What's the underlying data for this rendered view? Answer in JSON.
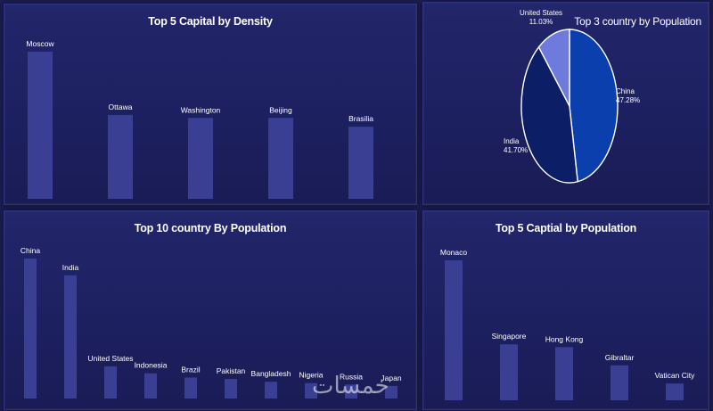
{
  "colors": {
    "bar": "#3a3f93",
    "pie_china": "#0c3fae",
    "pie_india": "#0b1e66",
    "pie_us": "#6f7bdc",
    "background": "#1b1d52"
  },
  "watermark": "خمسات",
  "chart_data": [
    {
      "id": "density",
      "type": "bar",
      "title": "Top 5 Capital by Density",
      "categories": [
        "Moscow",
        "Ottawa",
        "Washington",
        "Beijing",
        "Brasilia"
      ],
      "values": [
        100,
        57,
        55,
        55,
        49
      ],
      "ylim": [
        0,
        100
      ],
      "grid": false,
      "legend": "none"
    },
    {
      "id": "pie",
      "type": "pie",
      "title": "Top 3 country by Population",
      "categories": [
        "China",
        "India",
        "United States"
      ],
      "values": [
        47.28,
        41.7,
        11.03
      ],
      "value_labels": [
        "47.28%",
        "41.70%",
        "11.03%"
      ],
      "legend": "none"
    },
    {
      "id": "country",
      "type": "bar",
      "title": "Top 10 country By Population",
      "categories": [
        "China",
        "India",
        "United States",
        "Indonesia",
        "Brazil",
        "Pakistan",
        "Bangladesh",
        "Nigeria",
        "Russia",
        "Japan"
      ],
      "values": [
        100,
        88,
        23,
        18,
        15,
        14,
        12,
        11,
        10,
        9
      ],
      "ylim": [
        0,
        100
      ],
      "grid": false,
      "legend": "none"
    },
    {
      "id": "capital",
      "type": "bar",
      "title": "Top 5 Captial by Population",
      "categories": [
        "Monaco",
        "Singapore",
        "Hong Kong",
        "Gibraltar",
        "Vatican City"
      ],
      "values": [
        100,
        40,
        38,
        25,
        12
      ],
      "ylim": [
        0,
        100
      ],
      "grid": false,
      "legend": "none"
    }
  ]
}
